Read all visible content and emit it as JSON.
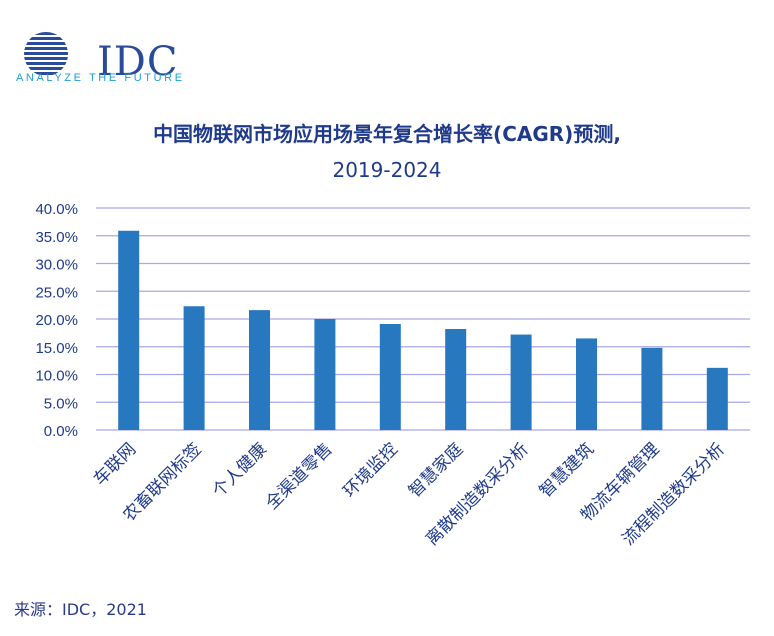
{
  "logo": {
    "name": "IDC",
    "tagline": "ANALYZE THE FUTURE",
    "color": "#2a4a9a",
    "tagline_color": "#1b9fd8"
  },
  "source_note": "来源：IDC，2021",
  "chart_data": {
    "type": "bar",
    "title": "中国物联网市场应用场景年复合增长率(CAGR)预测,",
    "subtitle": "2019-2024",
    "categories": [
      "车联网",
      "农畜联网标签",
      "个人健康",
      "全渠道零售",
      "环境监控",
      "智慧家庭",
      "离散制造数采分析",
      "智慧建筑",
      "物流车辆管理",
      "流程制造数采分析"
    ],
    "values": [
      35.9,
      22.3,
      21.6,
      20.0,
      19.1,
      18.2,
      17.2,
      16.5,
      14.8,
      11.2
    ],
    "y_ticks": [
      "0.0%",
      "5.0%",
      "10.0%",
      "15.0%",
      "20.0%",
      "25.0%",
      "30.0%",
      "35.0%",
      "40.0%"
    ],
    "ylim": [
      0,
      40
    ],
    "grid": true,
    "legend": "none",
    "bar_color": "#2878c0",
    "grid_color": "#a8a8e8",
    "text_color": "#1f3a8a"
  }
}
